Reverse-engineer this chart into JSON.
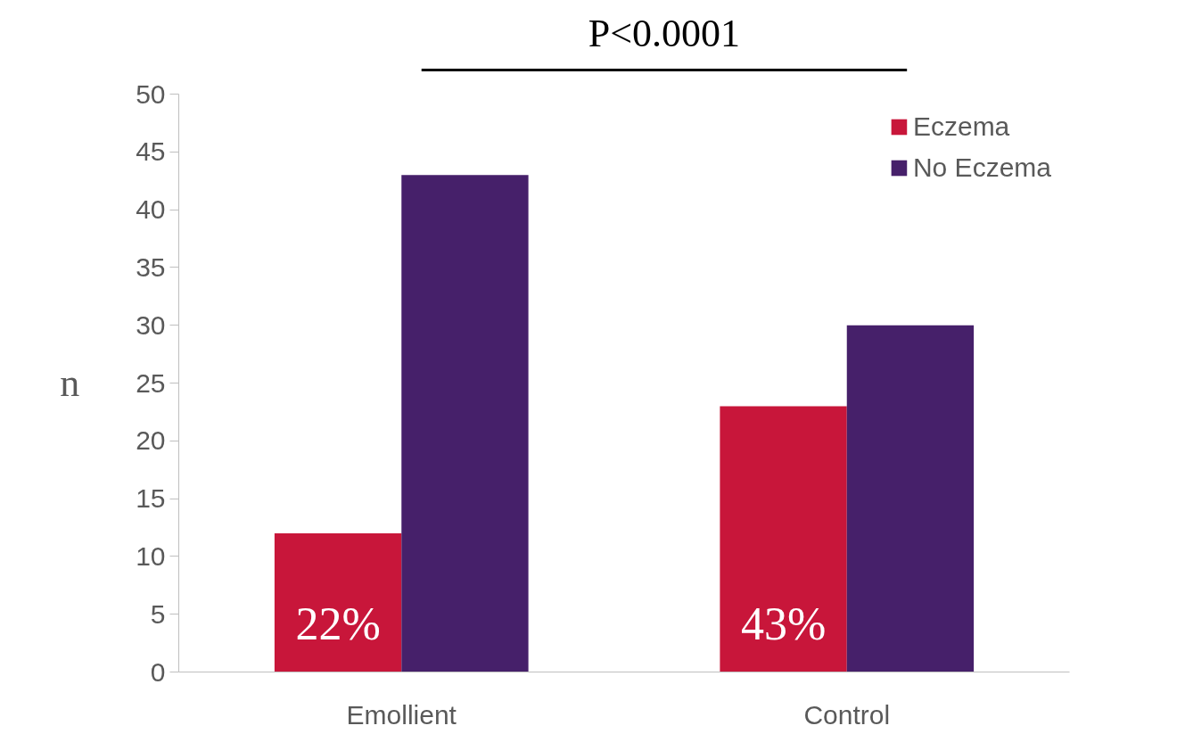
{
  "chart_data": {
    "type": "bar",
    "ylabel": "n",
    "categories": [
      "Emollient",
      "Control"
    ],
    "series": [
      {
        "name": "Eczema",
        "color": "#c8163a",
        "values": [
          12,
          23
        ]
      },
      {
        "name": "No Eczema",
        "color": "#46206a",
        "values": [
          43,
          30
        ]
      }
    ],
    "ylim": [
      0,
      50
    ],
    "yticks": [
      0,
      5,
      10,
      15,
      20,
      25,
      30,
      35,
      40,
      45,
      50
    ],
    "grid": false,
    "legend": "top right",
    "annotations": [
      "22%",
      "43%",
      "P<0.0001"
    ]
  }
}
